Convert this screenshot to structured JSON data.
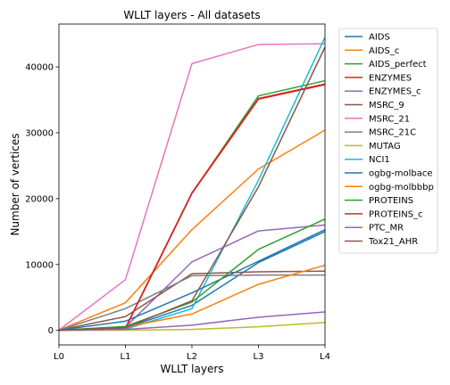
{
  "chart_data": {
    "type": "line",
    "title": "WLLT layers - All datasets",
    "xlabel": "WLLT layers",
    "ylabel": "Number of vertices",
    "categories": [
      "L0",
      "L1",
      "L2",
      "L3",
      "L4"
    ],
    "ylim": [
      -2200,
      46500
    ],
    "yticks": [
      0,
      10000,
      20000,
      30000,
      40000
    ],
    "grid": false,
    "legend_position": "outside-right",
    "series": [
      {
        "name": "AIDS",
        "color": "#1f77b4",
        "values": [
          40,
          400,
          3800,
          10300,
          15000
        ]
      },
      {
        "name": "AIDS_c",
        "color": "#ff7f0e",
        "values": [
          40,
          4200,
          15300,
          24500,
          30400
        ]
      },
      {
        "name": "AIDS_perfect",
        "color": "#2ca02c",
        "values": [
          30,
          300,
          20800,
          35600,
          37900
        ]
      },
      {
        "name": "ENZYMES",
        "color": "#d62728",
        "values": [
          30,
          300,
          20800,
          35100,
          37300
        ]
      },
      {
        "name": "ENZYMES_c",
        "color": "#9467bd",
        "values": [
          20,
          500,
          10400,
          15100,
          16000
        ]
      },
      {
        "name": "MSRC_9",
        "color": "#8c564b",
        "values": [
          30,
          2100,
          8600,
          8900,
          9000
        ]
      },
      {
        "name": "MSRC_21",
        "color": "#e377c2",
        "values": [
          50,
          7700,
          40500,
          43400,
          43500
        ]
      },
      {
        "name": "MSRC_21C",
        "color": "#7f7f7f",
        "values": [
          30,
          3300,
          8300,
          8400,
          8400
        ]
      },
      {
        "name": "MUTAG",
        "color": "#bcbd22",
        "values": [
          0,
          30,
          150,
          550,
          1200
        ]
      },
      {
        "name": "NCI1",
        "color": "#17becf",
        "values": [
          50,
          200,
          3300,
          22800,
          44500
        ]
      },
      {
        "name": "ogbg-molbace",
        "color": "#1f77b4",
        "values": [
          40,
          1400,
          5700,
          10500,
          15300
        ]
      },
      {
        "name": "ogbg-molbbbp",
        "color": "#ff7f0e",
        "values": [
          30,
          500,
          2500,
          7000,
          9900
        ]
      },
      {
        "name": "PROTEINS",
        "color": "#2ca02c",
        "values": [
          30,
          600,
          4300,
          12300,
          16900
        ]
      },
      {
        "name": "PROTEINS_c",
        "color": "#d62728",
        "values": [
          30,
          400,
          20900,
          35200,
          37400
        ]
      },
      {
        "name": "PTC_MR",
        "color": "#9467bd",
        "values": [
          10,
          150,
          800,
          2000,
          2800
        ]
      },
      {
        "name": "Tox21_AHR",
        "color": "#8c564b",
        "values": [
          40,
          400,
          4500,
          21800,
          43000
        ]
      }
    ]
  }
}
